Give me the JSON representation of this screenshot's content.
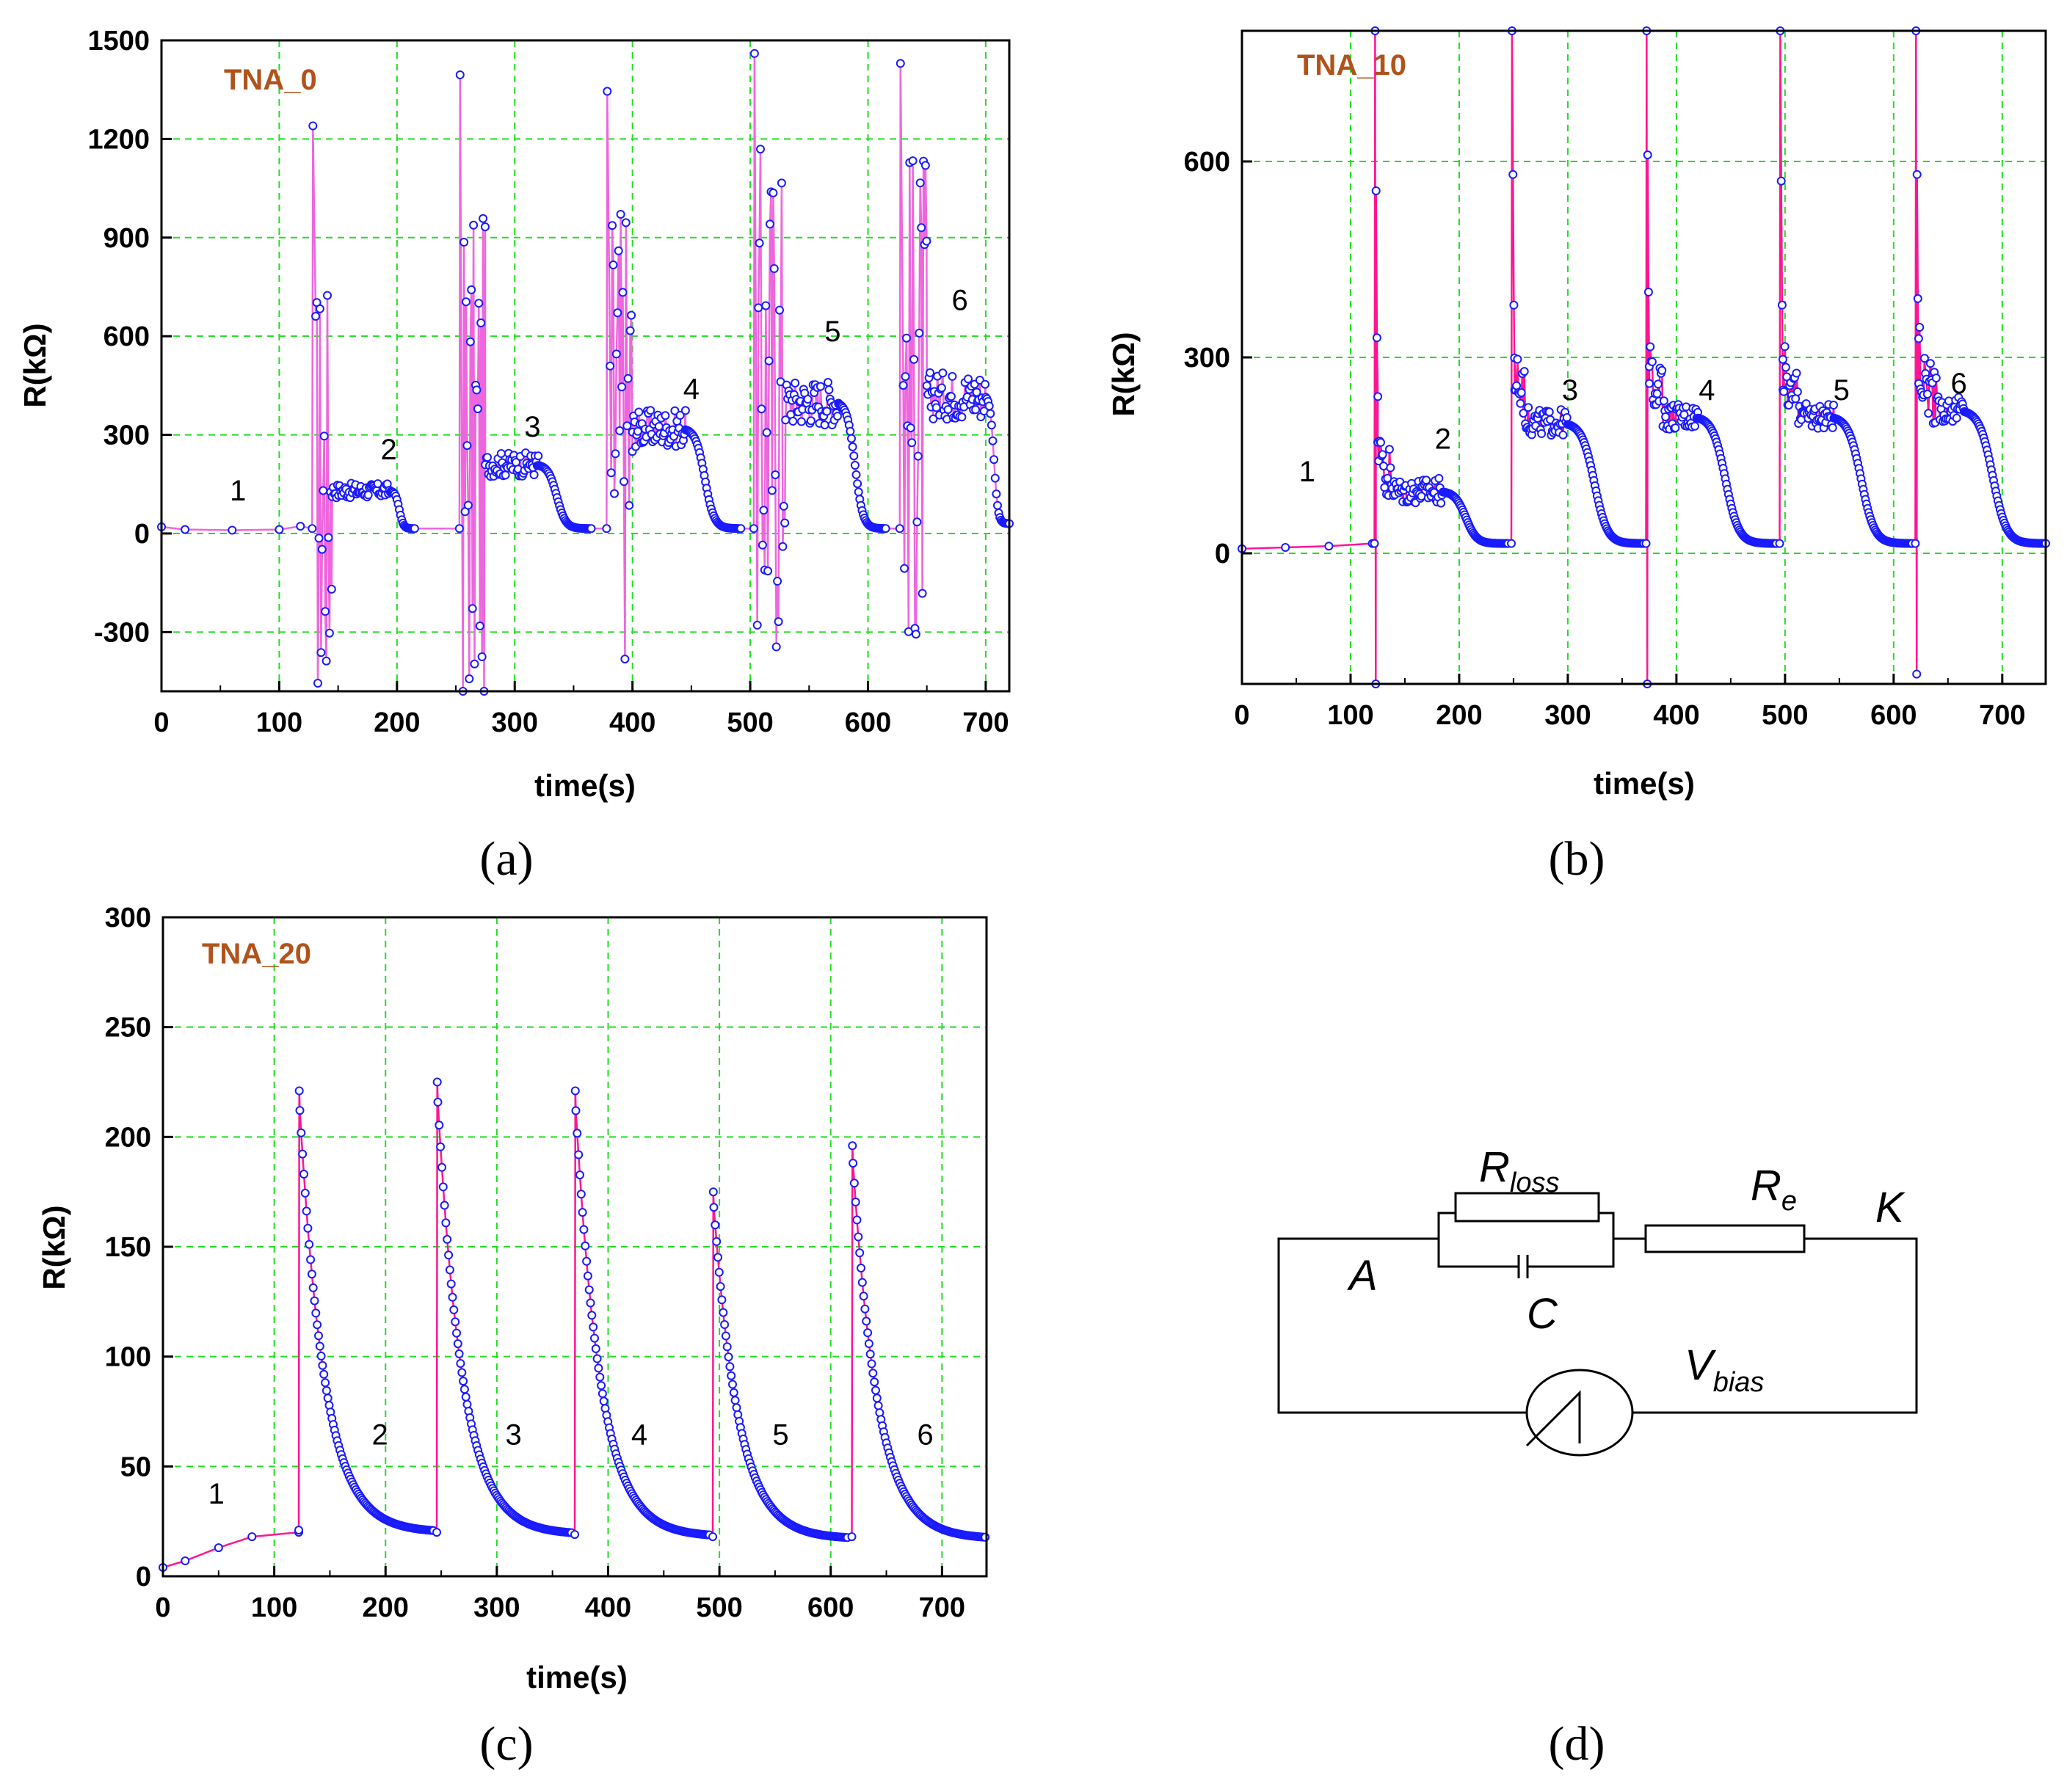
{
  "chart_data": [
    {
      "id": "a",
      "type": "line",
      "panel_label": "(a)",
      "sample_tag": "TNA_0",
      "xlabel": "time(s)",
      "ylabel": "R(kΩ)",
      "xlim": [
        0,
        720
      ],
      "ylim": [
        -480,
        1500
      ],
      "x_ticks": [
        0,
        100,
        200,
        300,
        400,
        500,
        600,
        700
      ],
      "y_ticks": [
        -300,
        0,
        300,
        600,
        900,
        1200,
        1500
      ],
      "grid": true,
      "line_color": "#ee66dd",
      "marker_color": "#1a1aff",
      "noise": "high",
      "baseline_points": [
        [
          0,
          20
        ],
        [
          20,
          12
        ],
        [
          60,
          10
        ],
        [
          100,
          12
        ],
        [
          118,
          22
        ]
      ],
      "segments": [
        {
          "start": 128,
          "peak": 1240,
          "plateau": 130,
          "plateau_start": 145,
          "plateau_end": 195,
          "end": 215,
          "recover": 15
        },
        {
          "start": 253,
          "peak": 1395,
          "plateau": 210,
          "plateau_start": 275,
          "plateau_end": 320,
          "end": 365,
          "recover": 15
        },
        {
          "start": 378,
          "peak": 1345,
          "plateau": 320,
          "plateau_start": 400,
          "plateau_end": 445,
          "end": 492,
          "recover": 15
        },
        {
          "start": 503,
          "peak": 1460,
          "plateau": 400,
          "plateau_start": 530,
          "plateau_end": 575,
          "end": 615,
          "recover": 15
        },
        {
          "start": 627,
          "peak": 1430,
          "plateau": 420,
          "plateau_start": 650,
          "plateau_end": 700,
          "end": 720,
          "recover": 30
        }
      ],
      "annotations": [
        {
          "text": "1",
          "x": 65,
          "y": 100
        },
        {
          "text": "2",
          "x": 193,
          "y": 225
        },
        {
          "text": "3",
          "x": 315,
          "y": 295
        },
        {
          "text": "4",
          "x": 450,
          "y": 410
        },
        {
          "text": "5",
          "x": 570,
          "y": 585
        },
        {
          "text": "6",
          "x": 678,
          "y": 680
        }
      ]
    },
    {
      "id": "b",
      "type": "line",
      "panel_label": "(b)",
      "sample_tag": "TNA_10",
      "xlabel": "time(s)",
      "ylabel": "R(kΩ)",
      "xlim": [
        0,
        740
      ],
      "ylim": [
        -200,
        800
      ],
      "x_ticks": [
        0,
        100,
        200,
        300,
        400,
        500,
        600,
        700
      ],
      "y_ticks": [
        0,
        300,
        600
      ],
      "grid": true,
      "line_color": "#ff1493",
      "marker_color": "#1a1aff",
      "noise": "medium",
      "baseline_points": [
        [
          0,
          7
        ],
        [
          40,
          9
        ],
        [
          80,
          11
        ],
        [
          120,
          15
        ]
      ],
      "segments": [
        {
          "start": 122,
          "peak": 800,
          "spike_min": -200,
          "plateau": 95,
          "plateau_start": 140,
          "plateau_end": 185,
          "end": 245,
          "recover": 15,
          "cluster": [
            555,
            330,
            240
          ]
        },
        {
          "start": 248,
          "peak": 800,
          "plateau": 200,
          "plateau_start": 265,
          "plateau_end": 300,
          "end": 370,
          "recover": 15,
          "cluster": [
            580,
            380,
            250
          ]
        },
        {
          "start": 372,
          "peak": 800,
          "spike_min": -200,
          "plateau": 210,
          "plateau_start": 390,
          "plateau_end": 420,
          "end": 492,
          "recover": 15,
          "cluster": [
            610,
            400,
            260
          ]
        },
        {
          "start": 495,
          "peak": 800,
          "plateau": 210,
          "plateau_start": 515,
          "plateau_end": 545,
          "end": 617,
          "recover": 15,
          "cluster": [
            570,
            380,
            250
          ]
        },
        {
          "start": 620,
          "peak": 800,
          "spike_min": -185,
          "plateau": 220,
          "plateau_start": 640,
          "plateau_end": 665,
          "end": 740,
          "recover": 15,
          "cluster": [
            580,
            390,
            260
          ]
        }
      ],
      "annotations": [
        {
          "text": "1",
          "x": 60,
          "y": 110
        },
        {
          "text": "2",
          "x": 185,
          "y": 160
        },
        {
          "text": "3",
          "x": 302,
          "y": 235
        },
        {
          "text": "4",
          "x": 428,
          "y": 235
        },
        {
          "text": "5",
          "x": 552,
          "y": 235
        },
        {
          "text": "6",
          "x": 660,
          "y": 245
        }
      ]
    },
    {
      "id": "c",
      "type": "line",
      "panel_label": "(c)",
      "sample_tag": "TNA_20",
      "xlabel": "time(s)",
      "ylabel": "R(kΩ)",
      "xlim": [
        0,
        740
      ],
      "ylim": [
        0,
        300
      ],
      "x_ticks": [
        0,
        100,
        200,
        300,
        400,
        500,
        600,
        700
      ],
      "y_ticks": [
        0,
        50,
        100,
        150,
        200,
        250,
        300
      ],
      "grid": true,
      "line_color": "#ff1493",
      "marker_color": "#1a1aff",
      "noise": "none",
      "baseline_points": [
        [
          0,
          4
        ],
        [
          20,
          7
        ],
        [
          50,
          13
        ],
        [
          80,
          18
        ],
        [
          122,
          20
        ]
      ],
      "segments": [
        {
          "start": 122,
          "peak": 221,
          "plateau": 20,
          "end": 244,
          "tau": 22
        },
        {
          "start": 246,
          "peak": 225,
          "plateau": 19,
          "end": 368,
          "tau": 22
        },
        {
          "start": 370,
          "peak": 221,
          "plateau": 18,
          "end": 492,
          "tau": 22
        },
        {
          "start": 494,
          "peak": 175,
          "plateau": 17,
          "end": 616,
          "tau": 22
        },
        {
          "start": 619,
          "peak": 196,
          "plateau": 17,
          "end": 740,
          "tau": 22
        }
      ],
      "annotations": [
        {
          "text": "1",
          "x": 48,
          "y": 33
        },
        {
          "text": "2",
          "x": 195,
          "y": 60
        },
        {
          "text": "3",
          "x": 315,
          "y": 60
        },
        {
          "text": "4",
          "x": 428,
          "y": 60
        },
        {
          "text": "5",
          "x": 555,
          "y": 60
        },
        {
          "text": "6",
          "x": 685,
          "y": 60
        }
      ]
    }
  ],
  "circuit": {
    "panel_label": "(d)",
    "r_loss": "R",
    "r_loss_sub": "loss",
    "r_e": "R",
    "r_e_sub": "e",
    "capacitor": "C",
    "node_a": "A",
    "node_k": "K",
    "v_bias": "V",
    "v_bias_sub": "bias"
  }
}
